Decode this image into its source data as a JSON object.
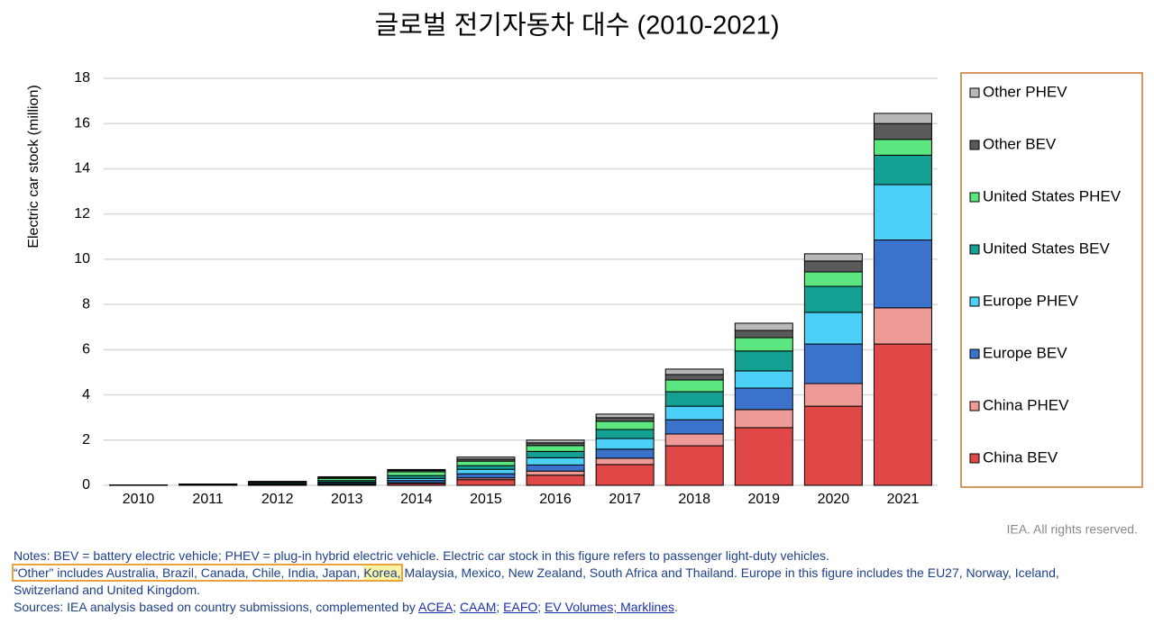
{
  "chart_data": {
    "type": "stacked_bar",
    "title": "글로벌 전기자동차 대수 (2010-2021)",
    "y_label": "Electric car stock (million)",
    "categories": [
      "2010",
      "2011",
      "2012",
      "2013",
      "2014",
      "2015",
      "2016",
      "2017",
      "2018",
      "2019",
      "2020",
      "2021"
    ],
    "ylim": [
      0,
      18
    ],
    "yticks": [
      0,
      2,
      4,
      6,
      8,
      10,
      12,
      14,
      16,
      18
    ],
    "grid": true,
    "legend_position": "right",
    "series": [
      {
        "name": "China BEV",
        "color": "#e04848",
        "values": [
          0,
          0.005,
          0.01,
          0.03,
          0.08,
          0.25,
          0.45,
          0.92,
          1.75,
          2.55,
          3.5,
          6.25
        ]
      },
      {
        "name": "China PHEV",
        "color": "#ee9a96",
        "values": [
          0,
          0,
          0.005,
          0.01,
          0.03,
          0.08,
          0.18,
          0.28,
          0.52,
          0.8,
          1.0,
          1.6
        ]
      },
      {
        "name": "Europe BEV",
        "color": "#3a72cc",
        "values": [
          0.005,
          0.01,
          0.02,
          0.05,
          0.1,
          0.18,
          0.27,
          0.4,
          0.63,
          0.95,
          1.75,
          3.0
        ]
      },
      {
        "name": "Europe PHEV",
        "color": "#4dd0f7",
        "values": [
          0,
          0.005,
          0.02,
          0.05,
          0.1,
          0.2,
          0.32,
          0.47,
          0.6,
          0.76,
          1.4,
          2.45
        ]
      },
      {
        "name": "United States BEV",
        "color": "#14a093",
        "values": [
          0,
          0.01,
          0.03,
          0.07,
          0.12,
          0.16,
          0.28,
          0.4,
          0.64,
          0.88,
          1.15,
          1.3
        ]
      },
      {
        "name": "United States PHEV",
        "color": "#5ce680",
        "values": [
          0,
          0.01,
          0.05,
          0.1,
          0.17,
          0.2,
          0.26,
          0.36,
          0.52,
          0.59,
          0.64,
          0.7
        ]
      },
      {
        "name": "Other BEV",
        "color": "#5a5a5a",
        "values": [
          0.01,
          0.015,
          0.03,
          0.05,
          0.06,
          0.09,
          0.12,
          0.16,
          0.24,
          0.32,
          0.48,
          0.7
        ]
      },
      {
        "name": "Other PHEV",
        "color": "#b8b8b8",
        "values": [
          0.005,
          0.005,
          0.01,
          0.02,
          0.04,
          0.09,
          0.12,
          0.16,
          0.24,
          0.32,
          0.32,
          0.45
        ]
      }
    ],
    "credit": "IEA. All rights reserved.",
    "notes": [
      "Notes: BEV = battery electric vehicle; PHEV = plug-in hybrid electric vehicle. Electric car stock in this figure refers to passenger light-duty vehicles.",
      {
        "boxed": "“Other” includes Australia, Brazil, Canada, Chile, India, Japan,",
        "highlight": "Korea,",
        "rest": "Malaysia, Mexico, New Zealand, South Africa and Thailand. Europe in this figure includes the EU27, Norway, Iceland, Switzerland and United Kingdom."
      }
    ],
    "sources": [
      {
        "text": "Sources: IEA analysis based on country submissions, complemented by",
        "link": false
      },
      {
        "text": "ACEA;",
        "link": true
      },
      {
        "text": "CAAM",
        "link": true
      },
      {
        "text": ";",
        "link": false
      },
      {
        "text": "EAFO",
        "link": true
      },
      {
        "text": ";",
        "link": false
      },
      {
        "text": "EV Volumes; Marklines",
        "link": true
      },
      {
        "text": ".",
        "link": false
      }
    ]
  }
}
